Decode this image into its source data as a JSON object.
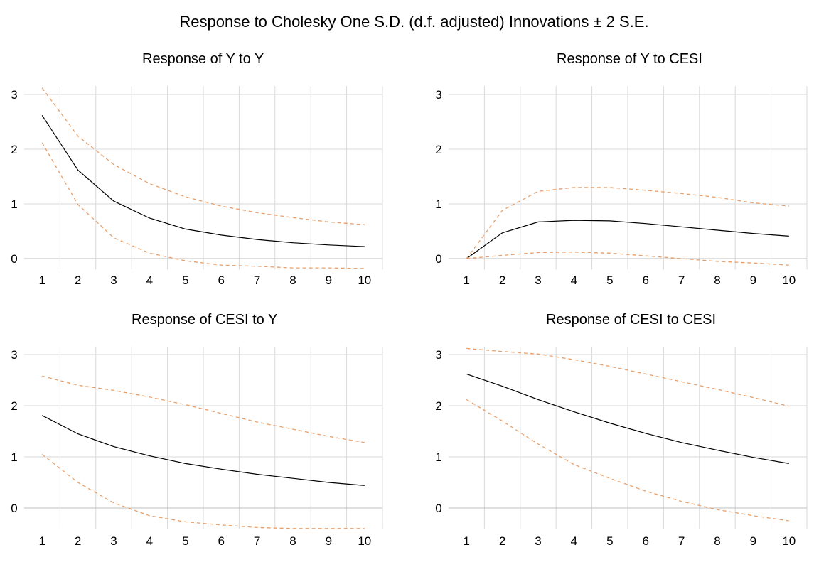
{
  "title": "Response to Cholesky One S.D. (d.f. adjusted) Innovations ± 2 S.E.",
  "colors": {
    "response": "#000000",
    "bands": "#e8a06b",
    "grid": "#d9d9d9",
    "zero_line": "#bfbfbf"
  },
  "chart_data": [
    {
      "type": "line",
      "title": "Response of Y to Y",
      "x": [
        1,
        2,
        3,
        4,
        5,
        6,
        7,
        8,
        9,
        10
      ],
      "ylim": [
        -0.2,
        3.1
      ],
      "yticks": [
        0,
        1,
        2,
        3
      ],
      "grid": true,
      "series": [
        {
          "role": "response",
          "values": [
            2.62,
            1.62,
            1.05,
            0.74,
            0.54,
            0.43,
            0.35,
            0.29,
            0.25,
            0.22
          ]
        },
        {
          "role": "upper",
          "values": [
            3.12,
            2.24,
            1.72,
            1.37,
            1.13,
            0.96,
            0.84,
            0.75,
            0.67,
            0.62
          ]
        },
        {
          "role": "lower",
          "values": [
            2.12,
            0.99,
            0.38,
            0.1,
            -0.04,
            -0.12,
            -0.14,
            -0.17,
            -0.17,
            -0.18
          ]
        }
      ]
    },
    {
      "type": "line",
      "title": "Response of Y to CESI",
      "x": [
        1,
        2,
        3,
        4,
        5,
        6,
        7,
        8,
        9,
        10
      ],
      "ylim": [
        -0.2,
        3.1
      ],
      "yticks": [
        0,
        1,
        2,
        3
      ],
      "grid": true,
      "series": [
        {
          "role": "response",
          "values": [
            0.0,
            0.47,
            0.67,
            0.7,
            0.69,
            0.64,
            0.58,
            0.52,
            0.46,
            0.41
          ]
        },
        {
          "role": "upper",
          "values": [
            0.0,
            0.88,
            1.23,
            1.3,
            1.3,
            1.25,
            1.19,
            1.12,
            1.02,
            0.96
          ]
        },
        {
          "role": "lower",
          "values": [
            0.0,
            0.06,
            0.11,
            0.12,
            0.1,
            0.05,
            0.0,
            -0.05,
            -0.08,
            -0.12
          ]
        }
      ]
    },
    {
      "type": "line",
      "title": "Response of CESI to Y",
      "x": [
        1,
        2,
        3,
        4,
        5,
        6,
        7,
        8,
        9,
        10
      ],
      "ylim": [
        -0.4,
        3.1
      ],
      "yticks": [
        0,
        1,
        2,
        3
      ],
      "grid": true,
      "series": [
        {
          "role": "response",
          "values": [
            1.81,
            1.45,
            1.2,
            1.02,
            0.87,
            0.76,
            0.66,
            0.58,
            0.5,
            0.44
          ]
        },
        {
          "role": "upper",
          "values": [
            2.58,
            2.4,
            2.3,
            2.17,
            2.02,
            1.85,
            1.68,
            1.54,
            1.4,
            1.28
          ]
        },
        {
          "role": "lower",
          "values": [
            1.05,
            0.5,
            0.1,
            -0.15,
            -0.27,
            -0.33,
            -0.38,
            -0.4,
            -0.4,
            -0.4
          ]
        }
      ]
    },
    {
      "type": "line",
      "title": "Response of CESI to CESI",
      "x": [
        1,
        2,
        3,
        4,
        5,
        6,
        7,
        8,
        9,
        10
      ],
      "ylim": [
        -0.4,
        3.1
      ],
      "yticks": [
        0,
        1,
        2,
        3
      ],
      "grid": true,
      "series": [
        {
          "role": "response",
          "values": [
            2.62,
            2.38,
            2.12,
            1.88,
            1.66,
            1.46,
            1.28,
            1.13,
            0.99,
            0.87
          ]
        },
        {
          "role": "upper",
          "values": [
            3.12,
            3.06,
            3.01,
            2.9,
            2.77,
            2.62,
            2.47,
            2.32,
            2.16,
            1.99
          ]
        },
        {
          "role": "lower",
          "values": [
            2.12,
            1.7,
            1.25,
            0.85,
            0.58,
            0.33,
            0.13,
            -0.03,
            -0.15,
            -0.25
          ]
        }
      ]
    }
  ]
}
